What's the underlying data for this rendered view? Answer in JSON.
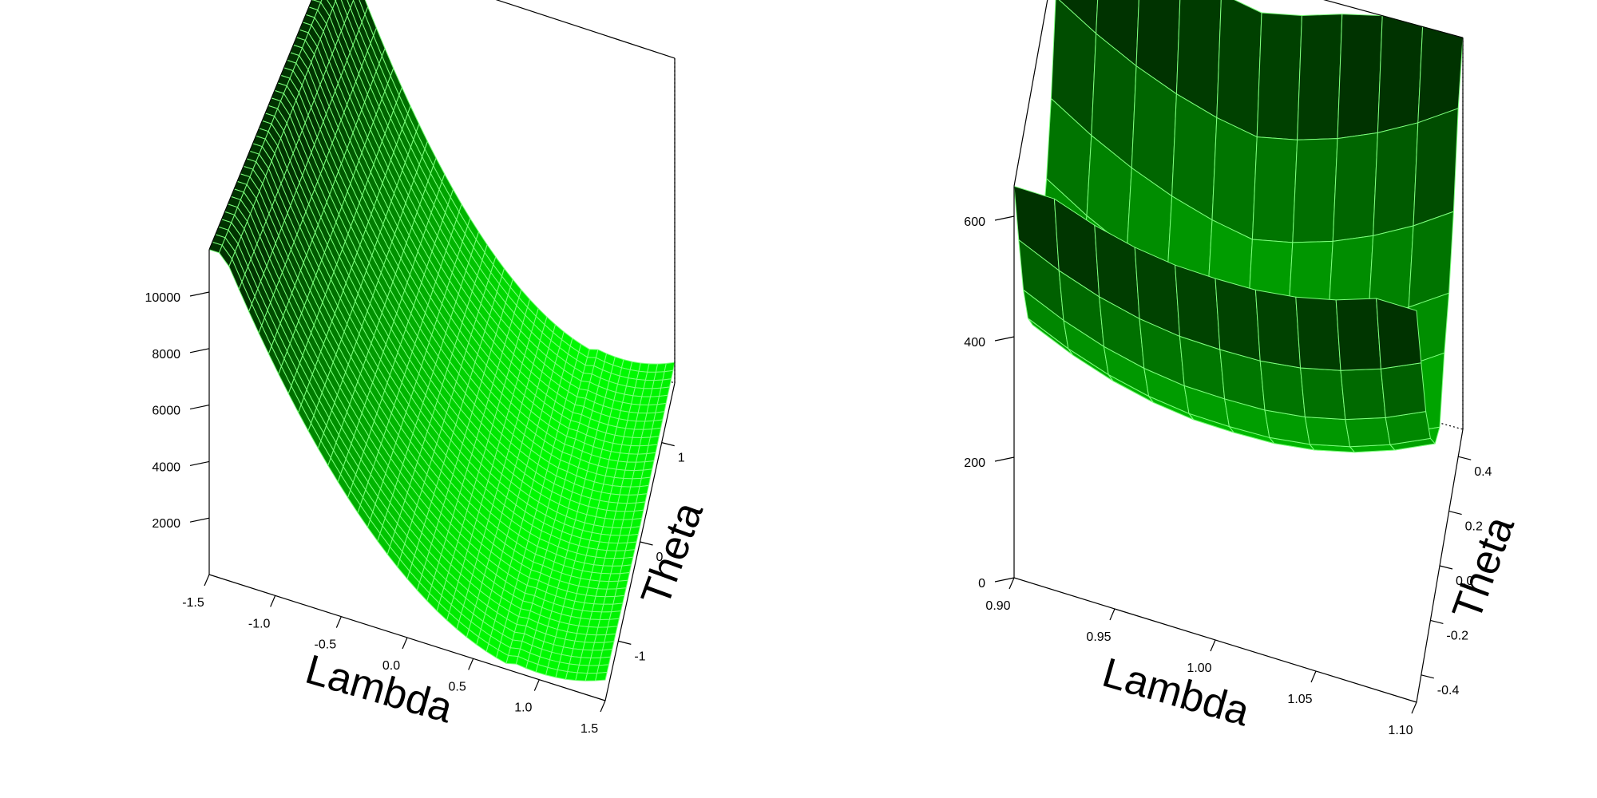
{
  "chart_data": [
    {
      "type": "surface",
      "xlabel": "Lambda",
      "ylabel": "Theta",
      "zlabel": "",
      "x_ticks": [
        "-1.5",
        "-1.0",
        "-0.5",
        "0.0",
        "0.5",
        "1.0",
        "1.5"
      ],
      "y_ticks": [
        "-1",
        "0",
        "1"
      ],
      "z_ticks": [
        "2000",
        "4000",
        "6000",
        "8000",
        "10000"
      ],
      "xlim": [
        -1.5,
        1.5
      ],
      "ylim": [
        -1.6,
        1.6
      ],
      "zlim": [
        0,
        11500
      ],
      "grid": [
        40,
        40
      ],
      "surface_model": "z = a*(lambda - x0)^2-like valley; min near lambda 1.0, rising to about 11000 at lambda -1.5",
      "color_low": "#00ff00",
      "color_high": "#003300"
    },
    {
      "type": "surface",
      "xlabel": "Lambda",
      "ylabel": "Theta",
      "zlabel": "",
      "x_ticks": [
        "0.90",
        "0.95",
        "1.00",
        "1.05",
        "1.10"
      ],
      "y_ticks": [
        "-0.4",
        "-0.2",
        "0.0",
        "0.2",
        "0.4"
      ],
      "z_ticks": [
        "0",
        "200",
        "400",
        "600"
      ],
      "xlim": [
        0.9,
        1.1
      ],
      "ylim": [
        -0.5,
        0.5
      ],
      "zlim": [
        0,
        650
      ],
      "grid": [
        10,
        10
      ],
      "surface_model": "bowl; minimum about 150 near lambda 1.0, theta 0.0; about 600 at the corners",
      "color_low": "#00ff00",
      "color_high": "#003300"
    }
  ]
}
